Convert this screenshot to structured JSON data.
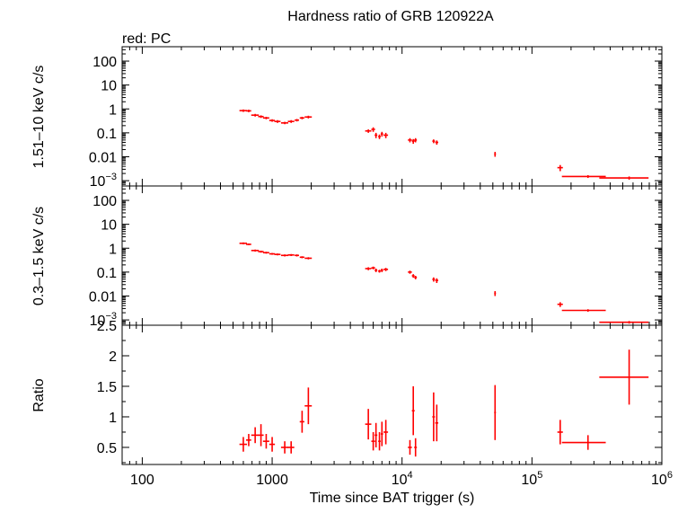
{
  "title": "Hardness ratio of GRB 120922A",
  "note": "red: PC",
  "colors": {
    "series": "#ff0000",
    "axis": "#000000"
  },
  "chart_data": [
    {
      "type": "scatter",
      "ylabel": "1.51–10 keV c/s",
      "yscale": "log",
      "xscale": "log",
      "xlim": [
        70,
        1000000
      ],
      "ylim": [
        0.0006,
        400
      ],
      "yticks": [
        {
          "v": 100,
          "label": "100"
        },
        {
          "v": 10,
          "label": "10"
        },
        {
          "v": 1,
          "label": "1"
        },
        {
          "v": 0.1,
          "label": "0.1"
        },
        {
          "v": 0.01,
          "label": "0.01"
        },
        {
          "v": 0.001,
          "label": "10",
          "sup": "−3"
        }
      ],
      "points": [
        [
          600,
          0.85,
          40,
          0.1
        ],
        [
          660,
          0.83,
          30,
          0.1
        ],
        [
          740,
          0.55,
          50,
          0.07
        ],
        [
          820,
          0.48,
          40,
          0.06
        ],
        [
          900,
          0.42,
          50,
          0.05
        ],
        [
          1000,
          0.33,
          50,
          0.04
        ],
        [
          1100,
          0.3,
          60,
          0.04
        ],
        [
          1250,
          0.26,
          80,
          0.03
        ],
        [
          1400,
          0.3,
          80,
          0.04
        ],
        [
          1550,
          0.34,
          60,
          0.04
        ],
        [
          1700,
          0.42,
          70,
          0.05
        ],
        [
          1900,
          0.46,
          120,
          0.06
        ],
        [
          5500,
          0.12,
          300,
          0.02
        ],
        [
          6000,
          0.14,
          200,
          0.03
        ],
        [
          6300,
          0.08,
          150,
          0.02
        ],
        [
          6700,
          0.07,
          150,
          0.015
        ],
        [
          7000,
          0.09,
          150,
          0.02
        ],
        [
          7500,
          0.08,
          300,
          0.02
        ],
        [
          11500,
          0.05,
          400,
          0.01
        ],
        [
          12200,
          0.045,
          300,
          0.01
        ],
        [
          12700,
          0.05,
          300,
          0.01
        ],
        [
          17500,
          0.045,
          400,
          0.008
        ],
        [
          18500,
          0.04,
          500,
          0.008
        ],
        [
          52000,
          0.013,
          800,
          0.003
        ],
        [
          165000,
          0.0035,
          8000,
          0.001
        ],
        [
          270000,
          0.0015,
          100000,
          0.0002
        ],
        [
          560000,
          0.0013,
          230000,
          0.0002
        ]
      ]
    },
    {
      "type": "scatter",
      "ylabel": "0.3–1.5 keV c/s",
      "yscale": "log",
      "xscale": "log",
      "xlim": [
        70,
        1000000
      ],
      "ylim": [
        0.0006,
        400
      ],
      "yticks": [
        {
          "v": 100,
          "label": "100"
        },
        {
          "v": 10,
          "label": "10"
        },
        {
          "v": 1,
          "label": "1"
        },
        {
          "v": 0.1,
          "label": "0.1"
        },
        {
          "v": 0.01,
          "label": "0.01"
        },
        {
          "v": 0.001,
          "label": "10",
          "sup": "−3"
        }
      ],
      "points": [
        [
          600,
          1.6,
          40,
          0.15
        ],
        [
          660,
          1.45,
          30,
          0.12
        ],
        [
          740,
          0.8,
          50,
          0.08
        ],
        [
          820,
          0.72,
          40,
          0.07
        ],
        [
          900,
          0.65,
          50,
          0.06
        ],
        [
          1000,
          0.58,
          50,
          0.05
        ],
        [
          1100,
          0.55,
          60,
          0.05
        ],
        [
          1250,
          0.5,
          80,
          0.05
        ],
        [
          1400,
          0.52,
          80,
          0.05
        ],
        [
          1550,
          0.5,
          60,
          0.05
        ],
        [
          1700,
          0.42,
          70,
          0.04
        ],
        [
          1900,
          0.38,
          120,
          0.04
        ],
        [
          5500,
          0.14,
          300,
          0.02
        ],
        [
          6000,
          0.15,
          200,
          0.02
        ],
        [
          6300,
          0.12,
          150,
          0.02
        ],
        [
          6700,
          0.11,
          150,
          0.015
        ],
        [
          7000,
          0.12,
          150,
          0.02
        ],
        [
          7500,
          0.13,
          300,
          0.02
        ],
        [
          11500,
          0.1,
          400,
          0.015
        ],
        [
          12200,
          0.07,
          300,
          0.012
        ],
        [
          12700,
          0.06,
          300,
          0.01
        ],
        [
          17500,
          0.05,
          400,
          0.01
        ],
        [
          18500,
          0.045,
          500,
          0.01
        ],
        [
          52000,
          0.013,
          800,
          0.003
        ],
        [
          165000,
          0.0045,
          8000,
          0.001
        ],
        [
          270000,
          0.0025,
          100000,
          0.0003
        ],
        [
          560000,
          0.0008,
          230000,
          0.0001
        ]
      ]
    },
    {
      "type": "scatter",
      "ylabel": "Ratio",
      "xlabel": "Time since BAT trigger (s)",
      "yscale": "linear",
      "xscale": "log",
      "xlim": [
        70,
        1000000
      ],
      "ylim": [
        0.22,
        2.5
      ],
      "yticks": [
        {
          "v": 0.5,
          "label": "0.5"
        },
        {
          "v": 1,
          "label": "1"
        },
        {
          "v": 1.5,
          "label": "1.5"
        },
        {
          "v": 2,
          "label": "2"
        },
        {
          "v": 2.5,
          "label": "2.5"
        }
      ],
      "xticks": [
        {
          "v": 100,
          "label": "100"
        },
        {
          "v": 1000,
          "label": "1000"
        },
        {
          "v": 10000,
          "label": "10",
          "sup": "4"
        },
        {
          "v": 100000,
          "label": "10",
          "sup": "5"
        },
        {
          "v": 1000000,
          "label": "10",
          "sup": "6"
        }
      ],
      "points": [
        [
          600,
          0.55,
          40,
          0.12
        ],
        [
          660,
          0.62,
          30,
          0.1
        ],
        [
          740,
          0.7,
          50,
          0.13
        ],
        [
          820,
          0.7,
          40,
          0.18
        ],
        [
          900,
          0.6,
          50,
          0.12
        ],
        [
          1000,
          0.55,
          50,
          0.12
        ],
        [
          1250,
          0.5,
          80,
          0.1
        ],
        [
          1400,
          0.5,
          80,
          0.1
        ],
        [
          1700,
          0.92,
          70,
          0.18
        ],
        [
          1900,
          1.18,
          120,
          0.3
        ],
        [
          5500,
          0.88,
          300,
          0.25
        ],
        [
          6000,
          0.6,
          200,
          0.15
        ],
        [
          6300,
          0.7,
          150,
          0.2
        ],
        [
          6700,
          0.6,
          150,
          0.15
        ],
        [
          7000,
          0.72,
          150,
          0.2
        ],
        [
          7500,
          0.75,
          300,
          0.2
        ],
        [
          11500,
          0.5,
          400,
          0.12
        ],
        [
          12200,
          1.1,
          300,
          0.4
        ],
        [
          12700,
          0.5,
          300,
          0.15
        ],
        [
          17500,
          1.0,
          400,
          0.4
        ],
        [
          18500,
          0.9,
          500,
          0.3
        ],
        [
          52000,
          1.07,
          800,
          0.45
        ],
        [
          165000,
          0.75,
          8000,
          0.2
        ],
        [
          270000,
          0.58,
          100000,
          0.12
        ],
        [
          560000,
          1.65,
          230000,
          0.45
        ]
      ]
    }
  ]
}
